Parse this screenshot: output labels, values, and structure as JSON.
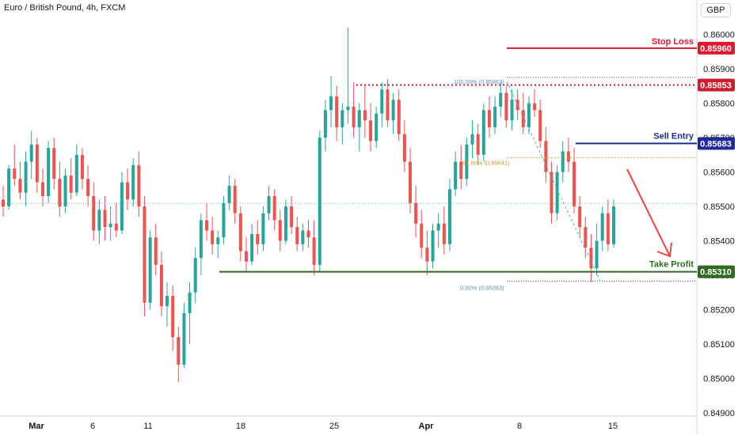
{
  "header": {
    "title": "Euro / British Pound, 4h, FXCM",
    "currency": "GBP"
  },
  "chart_data": {
    "type": "candlestick",
    "symbol": "EURGBP",
    "timeframe": "4h",
    "ylim": [
      0.849,
      0.861
    ],
    "y_ticks": [
      "0.86000",
      "0.85900",
      "0.85800",
      "0.85700",
      "0.85600",
      "0.85500",
      "0.85400",
      "0.85300",
      "0.85200",
      "0.85100",
      "0.85000",
      "0.84900"
    ],
    "x_ticks": [
      "Mar",
      "6",
      "11",
      "18",
      "25",
      "Apr",
      "8",
      "15"
    ],
    "last_price": 0.85509,
    "levels": {
      "stop_loss": {
        "label": "Stop Loss",
        "price": 0.8596,
        "price_text": "0.85960",
        "color": "#e0182b"
      },
      "resistance": {
        "price": 0.85853,
        "price_text": "0.85853",
        "color": "#d01c2a"
      },
      "sell_entry": {
        "label": "Sell Entry",
        "price": 0.85683,
        "price_text": "0.85683",
        "color": "#1e2a9c"
      },
      "take_profit": {
        "label": "Take Profit",
        "price": 0.8531,
        "price_text": "0.85310",
        "color": "#2e6b1f"
      }
    },
    "fib_labels": {
      "top": "100.00% (0.85863)",
      "mid": "61.80% (0.85641)",
      "bottom": "0.00% (0.85283)"
    },
    "colors": {
      "up": "#26a69a",
      "down": "#ef5350",
      "arrow": "#f04444",
      "fib_mid": "#e0a030",
      "fib_line": "#5ba6c9"
    },
    "candles": [
      [
        0.8552,
        0.8556,
        0.8547,
        0.855
      ],
      [
        0.855,
        0.8562,
        0.8549,
        0.8561
      ],
      [
        0.8561,
        0.8568,
        0.8556,
        0.8558
      ],
      [
        0.8558,
        0.8563,
        0.8552,
        0.8554
      ],
      [
        0.8554,
        0.8566,
        0.855,
        0.8563
      ],
      [
        0.8563,
        0.8572,
        0.8558,
        0.8568
      ],
      [
        0.8568,
        0.857,
        0.8554,
        0.8557
      ],
      [
        0.8557,
        0.8561,
        0.855,
        0.8553
      ],
      [
        0.8553,
        0.8569,
        0.8551,
        0.8567
      ],
      [
        0.8567,
        0.857,
        0.8555,
        0.8558
      ],
      [
        0.8558,
        0.8563,
        0.8547,
        0.855
      ],
      [
        0.855,
        0.8561,
        0.8548,
        0.8559
      ],
      [
        0.8559,
        0.8564,
        0.8552,
        0.8554
      ],
      [
        0.8554,
        0.8568,
        0.8553,
        0.8565
      ],
      [
        0.8565,
        0.8567,
        0.8555,
        0.8558
      ],
      [
        0.8558,
        0.8562,
        0.855,
        0.8553
      ],
      [
        0.8553,
        0.8557,
        0.854,
        0.8543
      ],
      [
        0.8543,
        0.8552,
        0.8539,
        0.8549
      ],
      [
        0.8549,
        0.8553,
        0.854,
        0.8544
      ],
      [
        0.8544,
        0.855,
        0.854,
        0.8545
      ],
      [
        0.8545,
        0.8551,
        0.8541,
        0.8543
      ],
      [
        0.8543,
        0.856,
        0.8542,
        0.8557
      ],
      [
        0.8557,
        0.8561,
        0.8549,
        0.8552
      ],
      [
        0.8552,
        0.8564,
        0.855,
        0.8562
      ],
      [
        0.8562,
        0.8566,
        0.8547,
        0.855
      ],
      [
        0.855,
        0.8553,
        0.8518,
        0.8522
      ],
      [
        0.8522,
        0.8543,
        0.852,
        0.8541
      ],
      [
        0.8541,
        0.8545,
        0.853,
        0.8533
      ],
      [
        0.8533,
        0.8537,
        0.8518,
        0.8521
      ],
      [
        0.8521,
        0.8528,
        0.8515,
        0.8524
      ],
      [
        0.8524,
        0.8527,
        0.8508,
        0.8512
      ],
      [
        0.8512,
        0.8515,
        0.8499,
        0.8504
      ],
      [
        0.8504,
        0.8522,
        0.8503,
        0.8519
      ],
      [
        0.8519,
        0.8528,
        0.851,
        0.8525
      ],
      [
        0.8525,
        0.8538,
        0.8522,
        0.8535
      ],
      [
        0.8535,
        0.8548,
        0.853,
        0.8546
      ],
      [
        0.8546,
        0.8551,
        0.854,
        0.8543
      ],
      [
        0.8543,
        0.8547,
        0.8536,
        0.8539
      ],
      [
        0.8539,
        0.8543,
        0.8535,
        0.8541
      ],
      [
        0.8541,
        0.8553,
        0.8539,
        0.8551
      ],
      [
        0.8551,
        0.8559,
        0.8549,
        0.8556
      ],
      [
        0.8556,
        0.8558,
        0.8545,
        0.8548
      ],
      [
        0.8548,
        0.855,
        0.8534,
        0.8537
      ],
      [
        0.8537,
        0.8541,
        0.8531,
        0.8534
      ],
      [
        0.8534,
        0.8545,
        0.8533,
        0.8542
      ],
      [
        0.8542,
        0.8546,
        0.8536,
        0.8539
      ],
      [
        0.8539,
        0.855,
        0.8537,
        0.8548
      ],
      [
        0.8548,
        0.8556,
        0.8546,
        0.8553
      ],
      [
        0.8553,
        0.8555,
        0.8543,
        0.8546
      ],
      [
        0.8546,
        0.8549,
        0.8537,
        0.854
      ],
      [
        0.854,
        0.8552,
        0.8539,
        0.855
      ],
      [
        0.855,
        0.8553,
        0.8542,
        0.8544
      ],
      [
        0.8544,
        0.8547,
        0.8537,
        0.8539
      ],
      [
        0.8539,
        0.8545,
        0.8537,
        0.8543
      ],
      [
        0.8543,
        0.8546,
        0.8538,
        0.8541
      ],
      [
        0.8541,
        0.8546,
        0.853,
        0.8533
      ],
      [
        0.8533,
        0.8572,
        0.8531,
        0.857
      ],
      [
        0.857,
        0.8581,
        0.8566,
        0.8578
      ],
      [
        0.8578,
        0.8588,
        0.8573,
        0.8582
      ],
      [
        0.8582,
        0.8585,
        0.8569,
        0.8573
      ],
      [
        0.8573,
        0.858,
        0.8568,
        0.8578
      ],
      [
        0.8578,
        0.8602,
        0.8574,
        0.8579
      ],
      [
        0.8579,
        0.8586,
        0.857,
        0.8573
      ],
      [
        0.8573,
        0.858,
        0.8566,
        0.8578
      ],
      [
        0.8578,
        0.8585,
        0.857,
        0.8575
      ],
      [
        0.8575,
        0.858,
        0.8566,
        0.8569
      ],
      [
        0.8569,
        0.8579,
        0.8567,
        0.8577
      ],
      [
        0.8577,
        0.8586,
        0.8573,
        0.8584
      ],
      [
        0.8584,
        0.8587,
        0.8573,
        0.8575
      ],
      [
        0.8575,
        0.8583,
        0.8571,
        0.8581
      ],
      [
        0.8581,
        0.8584,
        0.8569,
        0.8571
      ],
      [
        0.8571,
        0.8575,
        0.856,
        0.8563
      ],
      [
        0.8563,
        0.8567,
        0.8548,
        0.8551
      ],
      [
        0.8551,
        0.8556,
        0.8541,
        0.8545
      ],
      [
        0.8545,
        0.8549,
        0.8535,
        0.8538
      ],
      [
        0.8538,
        0.8543,
        0.853,
        0.8534
      ],
      [
        0.8534,
        0.8545,
        0.8532,
        0.8543
      ],
      [
        0.8543,
        0.8548,
        0.8538,
        0.8545
      ],
      [
        0.8545,
        0.855,
        0.8536,
        0.8539
      ],
      [
        0.8539,
        0.8558,
        0.8537,
        0.8555
      ],
      [
        0.8555,
        0.8566,
        0.8553,
        0.8563
      ],
      [
        0.8563,
        0.8568,
        0.8555,
        0.8558
      ],
      [
        0.8558,
        0.857,
        0.8556,
        0.8568
      ],
      [
        0.8568,
        0.8575,
        0.8564,
        0.8571
      ],
      [
        0.8571,
        0.8574,
        0.8562,
        0.8565
      ],
      [
        0.8565,
        0.858,
        0.8563,
        0.8578
      ],
      [
        0.8578,
        0.8582,
        0.857,
        0.8573
      ],
      [
        0.8573,
        0.8582,
        0.8571,
        0.8579
      ],
      [
        0.8579,
        0.8586,
        0.8576,
        0.8583
      ],
      [
        0.8583,
        0.8585,
        0.8573,
        0.8575
      ],
      [
        0.8575,
        0.8584,
        0.8572,
        0.8581
      ],
      [
        0.8581,
        0.8584,
        0.8575,
        0.8578
      ],
      [
        0.8578,
        0.8583,
        0.8571,
        0.8573
      ],
      [
        0.8573,
        0.8582,
        0.8571,
        0.858
      ],
      [
        0.858,
        0.8584,
        0.8576,
        0.8578
      ],
      [
        0.8578,
        0.8581,
        0.8567,
        0.8569
      ],
      [
        0.8569,
        0.8573,
        0.8557,
        0.856
      ],
      [
        0.856,
        0.8563,
        0.8545,
        0.8548
      ],
      [
        0.8548,
        0.8562,
        0.8546,
        0.856
      ],
      [
        0.856,
        0.8569,
        0.8557,
        0.8566
      ],
      [
        0.8566,
        0.857,
        0.856,
        0.8563
      ],
      [
        0.8563,
        0.8567,
        0.8548,
        0.855
      ],
      [
        0.855,
        0.8553,
        0.8541,
        0.8544
      ],
      [
        0.8544,
        0.8547,
        0.8535,
        0.8538
      ],
      [
        0.8538,
        0.8542,
        0.8528,
        0.8532
      ],
      [
        0.8532,
        0.8545,
        0.853,
        0.854
      ],
      [
        0.854,
        0.855,
        0.8537,
        0.8548
      ],
      [
        0.8548,
        0.8552,
        0.8537,
        0.8539
      ],
      [
        0.8539,
        0.8552,
        0.8538,
        0.855
      ]
    ]
  }
}
